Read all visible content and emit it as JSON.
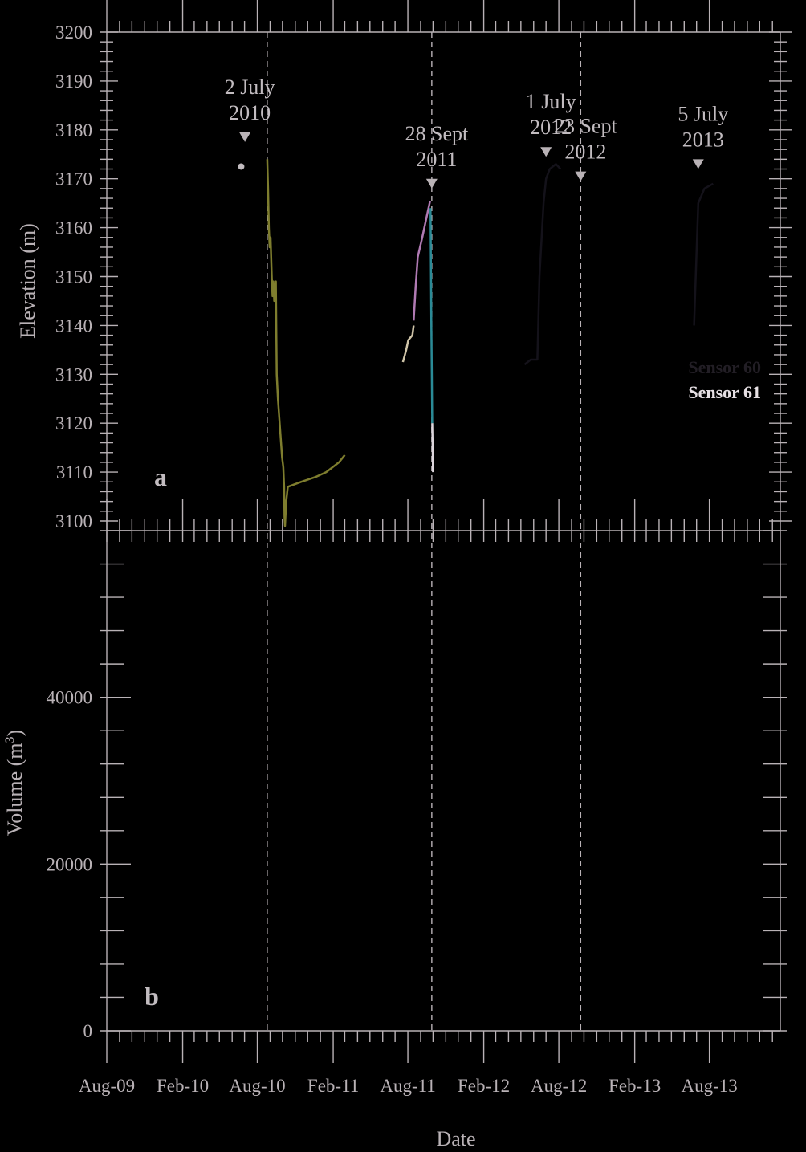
{
  "colors": {
    "background": "#000000",
    "axis": "#b9b2b6",
    "text": "#c2bcc0",
    "event_line": "#b9b2b6",
    "marker": "#b9b2b6"
  },
  "chart_data": [
    {
      "type": "line",
      "panel_label": "a",
      "ylabel": "Elevation (m)",
      "ylim": [
        3100,
        3200
      ],
      "yticks": [
        3100,
        3110,
        3120,
        3130,
        3140,
        3150,
        3160,
        3170,
        3180,
        3190,
        3200
      ],
      "events": [
        {
          "date": "2010-07-02",
          "label_line1": "2 July",
          "label_line2": "2010",
          "marker_y": 3178.5
        },
        {
          "date": "2011-09-28",
          "label_line1": "28 Sept",
          "label_line2": "2011",
          "marker_y": 3169
        },
        {
          "date": "2012-07-01",
          "label_line1": "1 July",
          "label_line2": "2012",
          "marker_y": 3175.5
        },
        {
          "date": "2012-09-23",
          "label_line1": "23 Sept",
          "label_line2": "2012",
          "marker_y": 3170.5
        },
        {
          "date": "2013-07-05",
          "label_line1": "5 July",
          "label_line2": "2013",
          "marker_y": 3173
        }
      ],
      "vlines": [
        "2010-08-25",
        "2011-09-28",
        "2012-09-23"
      ],
      "series": [
        {
          "color": "#7e7d2e",
          "points": [
            [
              "2010-08-25",
              3174
            ],
            [
              "2010-08-27",
              3168
            ],
            [
              "2010-08-29",
              3160
            ],
            [
              "2010-08-31",
              3156
            ],
            [
              "2010-09-02",
              3158
            ],
            [
              "2010-09-05",
              3150
            ],
            [
              "2010-09-07",
              3146
            ],
            [
              "2010-09-09",
              3149
            ],
            [
              "2010-09-11",
              3145
            ],
            [
              "2010-09-13",
              3148
            ],
            [
              "2010-09-15",
              3149
            ],
            [
              "2010-09-17",
              3130
            ],
            [
              "2010-09-20",
              3125
            ],
            [
              "2010-09-25",
              3119
            ],
            [
              "2010-09-30",
              3113
            ],
            [
              "2010-10-03",
              3111
            ],
            [
              "2010-10-05",
              3107
            ],
            [
              "2010-10-06",
              3101
            ],
            [
              "2010-10-07",
              3099
            ],
            [
              "2010-10-10",
              3104
            ],
            [
              "2010-10-14",
              3107
            ],
            [
              "2010-11-15",
              3108
            ],
            [
              "2010-12-20",
              3109
            ],
            [
              "2011-01-15",
              3110
            ],
            [
              "2011-02-15",
              3112
            ],
            [
              "2011-03-01",
              3113.5
            ]
          ]
        },
        {
          "color": "#c2bcc0",
          "points": [
            [
              "2010-06-19",
              3172.5
            ],
            [
              "2010-06-23",
              3173
            ]
          ]
        },
        {
          "color": "#cfc4a8",
          "points": [
            [
              "2011-07-20",
              3132.5
            ],
            [
              "2011-07-28",
              3135
            ],
            [
              "2011-08-02",
              3137
            ],
            [
              "2011-08-12",
              3138
            ],
            [
              "2011-08-15",
              3140
            ]
          ]
        },
        {
          "color": "#b07ab3",
          "points": [
            [
              "2011-08-15",
              3141
            ],
            [
              "2011-08-20",
              3148
            ],
            [
              "2011-08-25",
              3154
            ],
            [
              "2011-09-05",
              3158
            ],
            [
              "2011-09-15",
              3162
            ],
            [
              "2011-09-24",
              3165.5
            ]
          ]
        },
        {
          "color": "#2a8a96",
          "points": [
            [
              "2011-09-25",
              3164
            ],
            [
              "2011-09-27",
              3140
            ],
            [
              "2011-09-28",
              3130
            ],
            [
              "2011-09-29",
              3120
            ]
          ]
        },
        {
          "color": "#ddd6dc",
          "points": [
            [
              "2011-09-29",
              3120
            ],
            [
              "2011-09-30",
              3115
            ],
            [
              "2011-10-01",
              3110
            ]
          ]
        },
        {
          "color": "#14121a",
          "points": [
            [
              "2012-05-10",
              3132
            ],
            [
              "2012-05-25",
              3133
            ],
            [
              "2012-06-10",
              3133
            ],
            [
              "2012-06-15",
              3150
            ],
            [
              "2012-06-25",
              3165
            ],
            [
              "2012-07-01",
              3170
            ],
            [
              "2012-07-10",
              3172
            ],
            [
              "2012-07-25",
              3173
            ],
            [
              "2012-08-05",
              3172
            ]
          ]
        },
        {
          "color": "#14121a",
          "points": [
            [
              "2013-06-25",
              3140
            ],
            [
              "2013-07-01",
              3155
            ],
            [
              "2013-07-05",
              3165
            ],
            [
              "2013-07-20",
              3168
            ],
            [
              "2013-08-10",
              3169
            ]
          ]
        }
      ],
      "legend": [
        {
          "label": "Sensor 60",
          "color": "#221e25"
        },
        {
          "label": "Sensor 61",
          "color": "#e6e0e4"
        }
      ]
    },
    {
      "type": "line",
      "panel_label": "b",
      "ylabel": "Volume (m3)",
      "ylabel_main": "Volume (m",
      "ylabel_sup": "3",
      "ylabel_end": ")",
      "ylim": [
        0,
        60000
      ],
      "yticks": [
        0,
        20000,
        40000
      ],
      "xlabel": "Date",
      "xticks": [
        {
          "date": "2009-08-01",
          "label": "Aug-09"
        },
        {
          "date": "2010-02-01",
          "label": "Feb-10"
        },
        {
          "date": "2010-08-01",
          "label": "Aug-10"
        },
        {
          "date": "2011-02-01",
          "label": "Feb-11"
        },
        {
          "date": "2011-08-01",
          "label": "Aug-11"
        },
        {
          "date": "2012-02-01",
          "label": "Feb-12"
        },
        {
          "date": "2012-08-01",
          "label": "Aug-12"
        },
        {
          "date": "2013-02-01",
          "label": "Feb-13"
        },
        {
          "date": "2013-08-01",
          "label": "Aug-13"
        }
      ],
      "xlim": [
        "2009-08-01",
        "2014-01-20"
      ]
    }
  ]
}
